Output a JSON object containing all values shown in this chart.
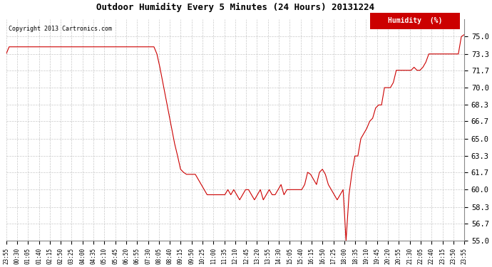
{
  "title": "Outdoor Humidity Every 5 Minutes (24 Hours) 20131224",
  "copyright": "Copyright 2013 Cartronics.com",
  "legend_label": "Humidity  (%)",
  "line_color": "#cc0000",
  "background_color": "#ffffff",
  "grid_color": "#bbbbbb",
  "ylim": [
    55.0,
    76.7
  ],
  "yticks": [
    55.0,
    56.7,
    58.3,
    60.0,
    61.7,
    63.3,
    65.0,
    66.7,
    68.3,
    70.0,
    71.7,
    73.3,
    75.0
  ],
  "xtick_labels": [
    "23:55",
    "00:30",
    "01:05",
    "01:40",
    "02:15",
    "02:50",
    "03:25",
    "04:00",
    "04:35",
    "05:10",
    "05:45",
    "06:20",
    "06:55",
    "07:30",
    "08:05",
    "08:40",
    "09:15",
    "09:50",
    "10:25",
    "11:00",
    "11:35",
    "12:10",
    "12:45",
    "13:20",
    "13:55",
    "14:30",
    "15:05",
    "15:40",
    "16:15",
    "16:50",
    "17:25",
    "18:00",
    "18:35",
    "19:10",
    "19:45",
    "20:20",
    "20:55",
    "21:30",
    "22:05",
    "22:40",
    "23:15",
    "23:50",
    "23:55"
  ],
  "humidity_values": [
    73.3,
    74.0,
    74.0,
    74.0,
    74.0,
    74.0,
    74.0,
    74.0,
    74.0,
    74.0,
    74.0,
    74.0,
    74.0,
    74.0,
    74.0,
    74.0,
    74.0,
    74.0,
    74.0,
    74.0,
    74.0,
    74.0,
    74.0,
    74.0,
    74.0,
    74.0,
    74.0,
    74.0,
    74.0,
    74.0,
    74.0,
    74.0,
    74.0,
    74.0,
    74.0,
    74.0,
    74.0,
    74.0,
    74.0,
    74.0,
    74.0,
    74.0,
    74.0,
    74.0,
    74.0,
    74.0,
    74.0,
    74.0,
    74.0,
    74.0,
    74.0,
    73.3,
    72.0,
    70.5,
    69.0,
    67.5,
    66.0,
    64.5,
    63.3,
    62.0,
    61.7,
    61.5,
    61.5,
    61.5,
    61.5,
    61.0,
    60.5,
    60.0,
    59.5,
    59.5,
    59.5,
    59.5,
    59.5,
    59.5,
    59.5,
    60.0,
    59.5,
    60.0,
    59.5,
    59.0,
    59.5,
    60.0,
    60.0,
    59.5,
    59.0,
    59.5,
    60.0,
    59.0,
    59.5,
    60.0,
    59.5,
    59.5,
    60.0,
    60.5,
    59.5,
    60.0,
    60.0,
    60.0,
    60.0,
    60.0,
    60.0,
    60.5,
    61.7,
    61.5,
    61.0,
    60.5,
    61.7,
    62.0,
    61.5,
    60.5,
    60.0,
    59.5,
    59.0,
    59.5,
    60.0,
    55.0,
    59.5,
    61.7,
    63.3,
    63.3,
    65.0,
    65.5,
    66.0,
    66.7,
    67.0,
    68.0,
    68.3,
    68.3,
    70.0,
    70.0,
    70.0,
    70.5,
    71.7,
    71.7,
    71.7,
    71.7,
    71.7,
    71.7,
    72.0,
    71.7,
    71.7,
    72.0,
    72.5,
    73.3,
    73.3,
    73.3,
    73.3,
    73.3,
    73.3,
    73.3,
    73.3,
    73.3,
    73.3,
    73.3,
    75.0,
    75.2
  ]
}
